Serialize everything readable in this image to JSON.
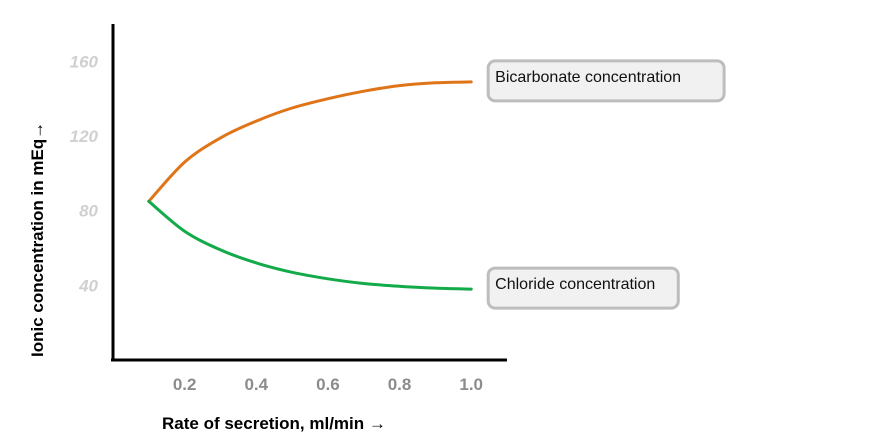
{
  "chart_data": {
    "type": "line",
    "title": "",
    "xlabel": "Rate of secretion, ml/min →",
    "ylabel": "Ionic concentration in mEq→",
    "xlim": [
      0,
      1.1
    ],
    "ylim": [
      0,
      180
    ],
    "xticks": [
      "0.2",
      "0.4",
      "0.6",
      "0.8",
      "1.0"
    ],
    "yticks": [
      "40",
      "80",
      "120",
      "160"
    ],
    "grid": false,
    "series": [
      {
        "name": "Bicarbonate concentration",
        "color": "#e07418",
        "x": [
          0.1,
          0.2,
          0.3,
          0.4,
          0.5,
          0.6,
          0.7,
          0.8,
          0.9,
          1.0
        ],
        "y": [
          85,
          106,
          119,
          128,
          135,
          140,
          144,
          147,
          148.5,
          149
        ]
      },
      {
        "name": "Chloride concentration",
        "color": "#13aa4a",
        "x": [
          0.1,
          0.2,
          0.3,
          0.4,
          0.5,
          0.6,
          0.7,
          0.8,
          0.9,
          1.0
        ],
        "y": [
          85,
          69,
          59,
          52,
          47,
          43.5,
          41,
          39.5,
          38.5,
          38
        ]
      }
    ]
  }
}
